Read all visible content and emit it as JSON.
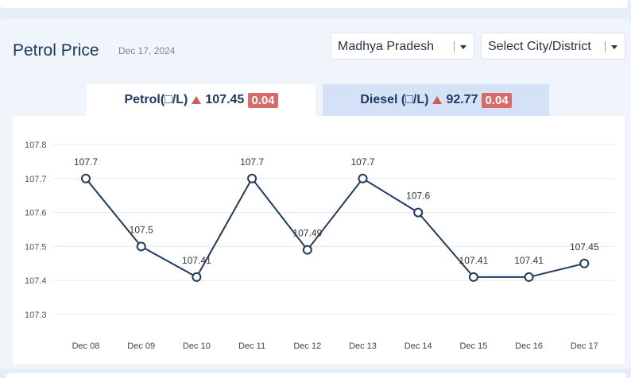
{
  "header": {
    "title": "Petrol Price",
    "date": "Dec 17, 2024"
  },
  "filters": {
    "state": "Madhya Pradesh",
    "city": "Select City/District"
  },
  "tabs": {
    "petrol": {
      "label": "Petrol(□/L)",
      "price": "107.45",
      "change": "0.04"
    },
    "diesel": {
      "label": "Diesel (□/L)",
      "price": "92.77",
      "change": "0.04"
    }
  },
  "colors": {
    "line": "#1f3a60",
    "up": "#d05a5a",
    "badge": "#d96a6a"
  },
  "chart_data": {
    "type": "line",
    "title": "",
    "xlabel": "",
    "ylabel": "",
    "ylim": [
      107.3,
      107.8
    ],
    "yticks": [
      "107.3",
      "107.4",
      "107.5",
      "107.6",
      "107.7",
      "107.8"
    ],
    "grid": true,
    "categories": [
      "Dec 08",
      "Dec 09",
      "Dec 10",
      "Dec 11",
      "Dec 12",
      "Dec 13",
      "Dec 14",
      "Dec 15",
      "Dec 16",
      "Dec 17"
    ],
    "series": [
      {
        "values": [
          107.7,
          107.5,
          107.41,
          107.7,
          107.49,
          107.7,
          107.6,
          107.41,
          107.41,
          107.45
        ],
        "labels": [
          "107.7",
          "107.5",
          "107.41",
          "107.7",
          "107.49",
          "107.7",
          "107.6",
          "107.41",
          "107.41",
          "107.45"
        ]
      }
    ]
  }
}
